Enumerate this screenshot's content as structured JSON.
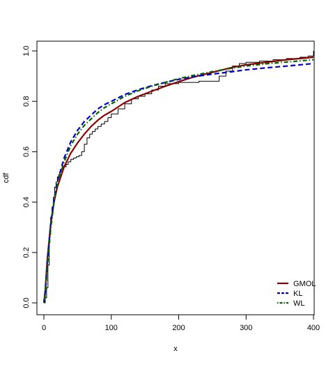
{
  "chart_data": {
    "type": "line",
    "title": "",
    "xlabel": "x",
    "ylabel": "cdf",
    "xlim": [
      0,
      400
    ],
    "ylim": [
      0,
      1.0
    ],
    "x_ticks": [
      0,
      100,
      200,
      300,
      400
    ],
    "y_ticks": [
      0.0,
      0.2,
      0.4,
      0.6,
      0.8,
      1.0
    ],
    "x_tick_labels": [
      "0",
      "100",
      "200",
      "300",
      "400"
    ],
    "y_tick_labels": [
      "0.0",
      "0.2",
      "0.4",
      "0.6",
      "0.8",
      "1.0"
    ],
    "grid": false,
    "legend_position": "bottom-right",
    "series": [
      {
        "name": "GMOL",
        "style": "solid",
        "color": "#8b0000",
        "x": [
          0,
          2,
          5,
          10,
          15,
          20,
          30,
          40,
          50,
          60,
          70,
          80,
          90,
          100,
          120,
          140,
          160,
          180,
          200,
          220,
          250,
          280,
          300,
          330,
          360,
          400
        ],
        "y": [
          0.0,
          0.05,
          0.17,
          0.31,
          0.4,
          0.46,
          0.54,
          0.595,
          0.635,
          0.67,
          0.7,
          0.725,
          0.745,
          0.76,
          0.795,
          0.82,
          0.84,
          0.86,
          0.878,
          0.895,
          0.915,
          0.935,
          0.945,
          0.955,
          0.965,
          0.975
        ]
      },
      {
        "name": "KL",
        "style": "dashed",
        "color": "#0000cd",
        "x": [
          0,
          2,
          5,
          10,
          15,
          20,
          30,
          40,
          50,
          60,
          70,
          80,
          90,
          100,
          120,
          140,
          160,
          180,
          200,
          220,
          250,
          280,
          300,
          330,
          360,
          400
        ],
        "y": [
          0.0,
          0.04,
          0.16,
          0.31,
          0.41,
          0.48,
          0.575,
          0.64,
          0.685,
          0.72,
          0.745,
          0.77,
          0.787,
          0.8,
          0.827,
          0.846,
          0.862,
          0.875,
          0.887,
          0.897,
          0.908,
          0.918,
          0.925,
          0.933,
          0.94,
          0.95
        ]
      },
      {
        "name": "WL",
        "style": "dotdash",
        "color": "#006400",
        "x": [
          0,
          2,
          5,
          10,
          15,
          20,
          30,
          40,
          50,
          60,
          70,
          80,
          90,
          100,
          120,
          140,
          160,
          180,
          200,
          220,
          250,
          280,
          300,
          330,
          360,
          400
        ],
        "y": [
          0.0,
          0.03,
          0.14,
          0.29,
          0.4,
          0.47,
          0.56,
          0.625,
          0.67,
          0.705,
          0.73,
          0.755,
          0.775,
          0.79,
          0.82,
          0.842,
          0.86,
          0.875,
          0.89,
          0.902,
          0.918,
          0.932,
          0.94,
          0.949,
          0.956,
          0.965
        ]
      },
      {
        "name": "",
        "style": "step",
        "color": "#000000",
        "x": [
          0,
          2,
          4,
          6,
          8,
          10,
          12,
          14,
          16,
          18,
          20,
          22,
          24,
          26,
          28,
          30,
          33,
          36,
          40,
          44,
          48,
          52,
          56,
          60,
          64,
          68,
          72,
          76,
          80,
          85,
          90,
          95,
          100,
          110,
          120,
          130,
          140,
          150,
          160,
          170,
          180,
          190,
          200,
          210,
          220,
          230,
          240,
          250,
          260,
          270,
          280,
          290,
          300,
          320,
          340,
          360,
          380,
          392,
          400
        ],
        "y": [
          0.0,
          0.02,
          0.06,
          0.15,
          0.27,
          0.34,
          0.38,
          0.42,
          0.46,
          0.48,
          0.5,
          0.51,
          0.52,
          0.53,
          0.535,
          0.54,
          0.55,
          0.56,
          0.57,
          0.575,
          0.58,
          0.585,
          0.6,
          0.63,
          0.655,
          0.67,
          0.68,
          0.69,
          0.7,
          0.71,
          0.72,
          0.735,
          0.75,
          0.77,
          0.79,
          0.81,
          0.82,
          0.83,
          0.845,
          0.86,
          0.87,
          0.87,
          0.875,
          0.875,
          0.875,
          0.88,
          0.88,
          0.88,
          0.9,
          0.92,
          0.94,
          0.95,
          0.955,
          0.96,
          0.965,
          0.97,
          0.975,
          0.98,
          1.0
        ]
      }
    ]
  }
}
